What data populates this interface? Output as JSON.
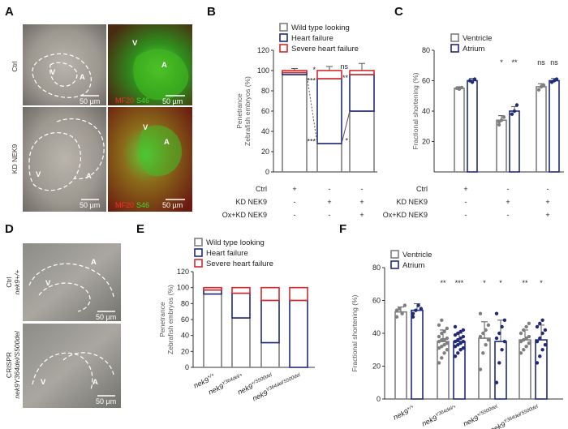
{
  "panels": {
    "A": {
      "letter": "A",
      "row_labels": [
        "Ctrl",
        "KD NEK9"
      ],
      "bright_scale": "50 µm",
      "fluor_scale": "50 µm",
      "V": "V",
      "A": "A",
      "stain1": "MF20",
      "stain2": "S46"
    },
    "D": {
      "letter": "D",
      "row1_l1": "Ctrl",
      "row1_l2": "nek9+/+",
      "row2_l1": "CRISPR",
      "row2_l2": "nek9Y364del/S500del",
      "scale": "50 µm",
      "V": "V",
      "A": "A"
    }
  },
  "conditions_BC": {
    "rows": [
      {
        "label": "Ctrl",
        "marks": [
          "+",
          "-",
          "-"
        ]
      },
      {
        "label": "KD NEK9",
        "marks": [
          "-",
          "+",
          "+"
        ]
      },
      {
        "label": "Ox+KD NEK9",
        "marks": [
          "-",
          "-",
          "+"
        ]
      }
    ]
  },
  "chart_data": [
    {
      "panel": "B",
      "type": "bar",
      "stacked": true,
      "ylabel": [
        "Penetrance",
        "Zebrafish embryos (%)"
      ],
      "ylim": [
        0,
        120
      ],
      "yticks": [
        0,
        20,
        40,
        60,
        80,
        100,
        120
      ],
      "legend": [
        "Wild type looking",
        "Heart failure",
        "Severe heart failure"
      ],
      "colors": [
        "#7f7f7f",
        "#1f2a78",
        "#d42a2a"
      ],
      "series": [
        {
          "name": "Wild type looking",
          "values": [
            96,
            28,
            60
          ],
          "errors": [
            2,
            4,
            9
          ]
        },
        {
          "name": "Heart failure",
          "values": [
            2,
            64,
            36
          ]
        },
        {
          "name": "Severe heart failure",
          "values": [
            2,
            8,
            4
          ],
          "errors": [
            2,
            4,
            7
          ]
        }
      ],
      "annotations": [
        {
          "text": "*",
          "bar": 1,
          "y": 101
        },
        {
          "text": "***",
          "bar": 1,
          "y": 90
        },
        {
          "text": "***",
          "bar": 1,
          "y": 30
        },
        {
          "text": "ns",
          "bar": 2,
          "y": 104
        },
        {
          "text": "**",
          "bar": 2,
          "y": 93
        },
        {
          "text": "*",
          "bar": 2,
          "y": 31
        }
      ]
    },
    {
      "panel": "C",
      "type": "bar",
      "ylabel": "Fractional shortening (%)",
      "ylim": [
        0,
        80
      ],
      "yticks": [
        20,
        40,
        60,
        80
      ],
      "legend": [
        "Ventricle",
        "Atrium"
      ],
      "colors": [
        "#7f7f7f",
        "#1f2a78"
      ],
      "groups": [
        {
          "ventricle": 55,
          "atrium": 60,
          "v_err": 1,
          "a_err": 1.5,
          "v_pts": [
            55,
            54.5,
            55.5
          ],
          "a_pts": [
            60,
            59,
            61
          ]
        },
        {
          "ventricle": 34,
          "atrium": 40,
          "v_err": 3,
          "a_err": 3,
          "v_pts": [
            31,
            34,
            36,
            33
          ],
          "a_pts": [
            38,
            40,
            44
          ]
        },
        {
          "ventricle": 56,
          "atrium": 60,
          "v_err": 2,
          "a_err": 1.5,
          "v_pts": [
            54,
            56,
            57
          ],
          "a_pts": [
            59,
            60,
            61
          ]
        }
      ],
      "annotations": [
        {
          "text": "*",
          "group": 1,
          "series": 0
        },
        {
          "text": "**",
          "group": 1,
          "series": 1
        },
        {
          "text": "ns",
          "group": 2,
          "series": 0
        },
        {
          "text": "ns",
          "group": 2,
          "series": 1
        }
      ]
    },
    {
      "panel": "E",
      "type": "bar",
      "stacked": true,
      "ylabel": [
        "Penetrance",
        "Zebrafish embryos (%)"
      ],
      "ylim": [
        0,
        120
      ],
      "yticks": [
        0,
        20,
        40,
        60,
        80,
        100,
        120
      ],
      "legend": [
        "Wild type looking",
        "Heart failure",
        "Severe heart failure"
      ],
      "colors": [
        "#7f7f7f",
        "#1f2a78",
        "#d42a2a"
      ],
      "categories": [
        {
          "base": "nek9",
          "sup": "+/+"
        },
        {
          "base": "nek9",
          "sup": "Y364del/+"
        },
        {
          "base": "nek9",
          "sup": "+/S500del"
        },
        {
          "base": "nek9",
          "sup": "Y364del/S500del"
        }
      ],
      "series": [
        {
          "name": "Wild type looking",
          "values": [
            92,
            62,
            31,
            0
          ]
        },
        {
          "name": "Heart failure",
          "values": [
            5,
            31,
            53,
            84
          ]
        },
        {
          "name": "Severe heart failure",
          "values": [
            3,
            7,
            16,
            16
          ]
        }
      ]
    },
    {
      "panel": "F",
      "type": "bar",
      "ylabel": "Fractional shortening (%)",
      "ylim": [
        0,
        80
      ],
      "yticks": [
        0,
        20,
        40,
        60,
        80
      ],
      "legend": [
        "Ventricle",
        "Atrium"
      ],
      "colors": [
        "#7f7f7f",
        "#1f2a78"
      ],
      "categories": [
        {
          "base": "nek9",
          "sup": "+/+"
        },
        {
          "base": "nek9",
          "sup": "Y364del/+"
        },
        {
          "base": "nek9",
          "sup": "+/S500del"
        },
        {
          "base": "nek9",
          "sup": "Y364del/S500del"
        }
      ],
      "groups": [
        {
          "ventricle": 53,
          "atrium": 54,
          "v_err": 3,
          "a_err": 4,
          "v_pts": [
            50,
            55,
            52,
            57,
            54
          ],
          "a_pts": [
            50,
            54,
            57,
            55,
            52
          ]
        },
        {
          "ventricle": 35,
          "atrium": 35,
          "v_err": 7,
          "a_err": 5,
          "v_pts": [
            22,
            25,
            28,
            30,
            31,
            32,
            33,
            34,
            35,
            36,
            36,
            37,
            38,
            40,
            41,
            43,
            45,
            48
          ],
          "a_pts": [
            26,
            28,
            30,
            31,
            32,
            33,
            34,
            35,
            35,
            36,
            37,
            38,
            39,
            40,
            41,
            42,
            44
          ]
        },
        {
          "ventricle": 37,
          "atrium": 35,
          "v_err": 10,
          "a_err": 13,
          "v_pts": [
            18,
            28,
            33,
            36,
            38,
            40,
            42,
            45,
            52
          ],
          "a_pts": [
            10,
            22,
            30,
            35,
            37,
            40,
            44,
            48,
            52
          ]
        },
        {
          "ventricle": 36,
          "atrium": 36,
          "v_err": 6,
          "a_err": 9,
          "v_pts": [
            28,
            30,
            32,
            34,
            35,
            36,
            37,
            38,
            40,
            42,
            44,
            46
          ],
          "a_pts": [
            22,
            26,
            30,
            33,
            35,
            37,
            40,
            42,
            44,
            46,
            48
          ]
        }
      ],
      "annotations": [
        {
          "text": "**",
          "group": 1,
          "series": 0
        },
        {
          "text": "***",
          "group": 1,
          "series": 1
        },
        {
          "text": "*",
          "group": 2,
          "series": 0
        },
        {
          "text": "*",
          "group": 2,
          "series": 1
        },
        {
          "text": "**",
          "group": 3,
          "series": 0
        },
        {
          "text": "*",
          "group": 3,
          "series": 1
        }
      ]
    }
  ]
}
